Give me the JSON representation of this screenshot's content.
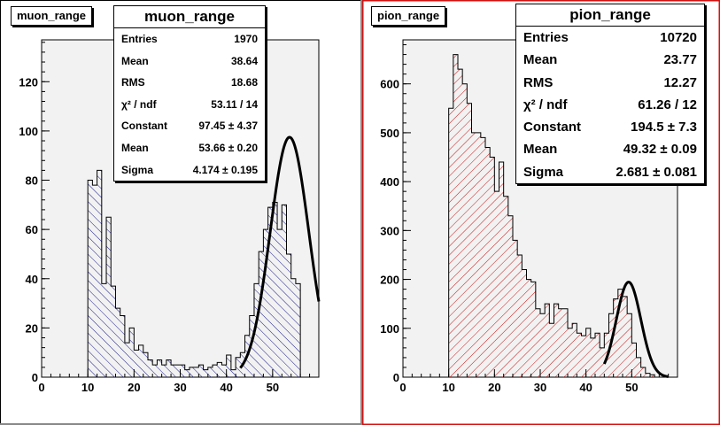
{
  "chart_data": [
    {
      "type": "bar",
      "name": "muon_range",
      "title": "muon_range",
      "pad_label": "muon_range",
      "xlim": [
        0,
        60
      ],
      "ylim": [
        0,
        137
      ],
      "xticks": [
        0,
        10,
        20,
        30,
        40,
        50
      ],
      "yticks": [
        0,
        20,
        40,
        60,
        80,
        100,
        120
      ],
      "bin_width": 1,
      "bins_x_start": 10,
      "values": [
        80,
        78,
        84,
        38,
        65,
        37,
        28,
        25,
        14,
        20,
        11,
        13,
        10,
        7,
        5,
        7,
        5,
        7,
        5,
        5,
        5,
        3,
        4,
        4,
        5,
        3,
        4,
        5,
        6,
        5,
        9,
        3,
        8,
        10,
        17,
        25,
        38,
        51,
        60,
        69,
        71,
        60,
        70,
        50,
        40,
        38
      ],
      "fill": "#1a1a8a",
      "hatch": "backward",
      "fit": {
        "mu": 53.66,
        "sigma": 4.174,
        "amplitude": 97.45,
        "x_from": 43,
        "x_to": 60
      },
      "stats": {
        "title": "muon_range",
        "rows": [
          {
            "label": "Entries",
            "value": "1970"
          },
          {
            "label": "Mean",
            "value": "38.64"
          },
          {
            "label": "RMS",
            "value": "18.68"
          },
          {
            "label": "χ² / ndf",
            "value": "53.11 / 14"
          },
          {
            "label": "Constant",
            "value": "97.45 ± 4.37"
          },
          {
            "label": "Mean",
            "value": "53.66 ± 0.20"
          },
          {
            "label": "Sigma",
            "value": "4.174 ± 0.195"
          }
        ]
      }
    },
    {
      "type": "bar",
      "name": "pion_range",
      "title": "pion_range",
      "pad_label": "pion_range",
      "xlim": [
        0,
        60
      ],
      "ylim": [
        0,
        690
      ],
      "xticks": [
        0,
        10,
        20,
        30,
        40,
        50
      ],
      "yticks": [
        0,
        100,
        200,
        300,
        400,
        500,
        600
      ],
      "bin_width": 1,
      "bins_x_start": 10,
      "values": [
        550,
        660,
        630,
        600,
        560,
        500,
        500,
        490,
        470,
        450,
        380,
        440,
        370,
        330,
        280,
        250,
        220,
        200,
        195,
        140,
        130,
        150,
        110,
        150,
        140,
        140,
        100,
        110,
        90,
        85,
        100,
        80,
        90,
        60,
        90,
        130,
        160,
        180,
        165,
        130,
        70,
        40,
        20,
        8,
        5
      ],
      "fill": "#c81414",
      "hatch": "forward",
      "fit": {
        "mu": 49.32,
        "sigma": 2.681,
        "amplitude": 194.5,
        "x_from": 44,
        "x_to": 58
      },
      "stats": {
        "title": "pion_range",
        "rows": [
          {
            "label": "Entries",
            "value": "10720"
          },
          {
            "label": "Mean",
            "value": "23.77"
          },
          {
            "label": "RMS",
            "value": "12.27"
          },
          {
            "label": "χ² / ndf",
            "value": "61.26 / 12"
          },
          {
            "label": "Constant",
            "value": "194.5 ± 7.3"
          },
          {
            "label": "Mean",
            "value": "49.32 ± 0.09"
          },
          {
            "label": "Sigma",
            "value": "2.681 ± 0.081"
          }
        ]
      }
    }
  ],
  "colors": {
    "pad_fill": "#ffffff",
    "frame_fill": "#f2f2f2",
    "active_pad_border": "#d01010"
  }
}
